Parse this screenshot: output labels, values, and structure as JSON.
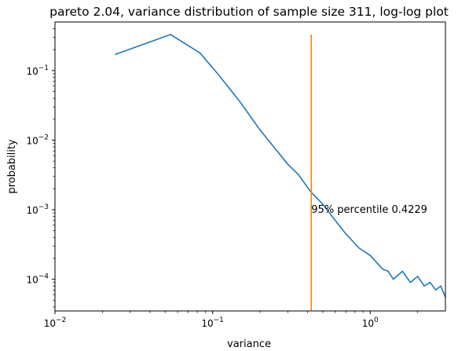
{
  "chart_data": {
    "type": "line",
    "title": "pareto 2.04, variance distribution of sample size 311, log-log plot",
    "xlabel": "variance",
    "ylabel": "probability",
    "xscale": "log",
    "yscale": "log",
    "xlim": [
      0.01,
      3.0
    ],
    "ylim": [
      3.5e-05,
      0.5
    ],
    "x_ticks": [
      {
        "value": 0.01,
        "base": "10",
        "exp": "−2"
      },
      {
        "value": 0.1,
        "base": "10",
        "exp": "−1"
      },
      {
        "value": 1,
        "base": "10",
        "exp": "0"
      }
    ],
    "y_ticks": [
      {
        "value": 0.0001,
        "base": "10",
        "exp": "−4"
      },
      {
        "value": 0.001,
        "base": "10",
        "exp": "−3"
      },
      {
        "value": 0.01,
        "base": "10",
        "exp": "−2"
      },
      {
        "value": 0.1,
        "base": "10",
        "exp": "−1"
      }
    ],
    "grid": false,
    "series": [
      {
        "color": "#1f77b4",
        "x": [
          0.024,
          0.054,
          0.083,
          0.11,
          0.15,
          0.2,
          0.25,
          0.3,
          0.35,
          0.42,
          0.5,
          0.6,
          0.7,
          0.85,
          1.0,
          1.2,
          1.3,
          1.4,
          1.6,
          1.8,
          2.0,
          2.2,
          2.4,
          2.6,
          2.8,
          3.0
        ],
        "y": [
          0.17,
          0.33,
          0.18,
          0.085,
          0.035,
          0.014,
          0.0075,
          0.0045,
          0.0032,
          0.0018,
          0.0012,
          0.0007,
          0.00045,
          0.00028,
          0.00022,
          0.00014,
          0.00013,
          0.0001,
          0.00013,
          9e-05,
          0.00011,
          8e-05,
          9e-05,
          7e-05,
          8e-05,
          5.5e-05
        ]
      }
    ],
    "vline": {
      "x": 0.4229,
      "y_top": 0.33,
      "color": "#ff7f0e"
    },
    "annotation": {
      "text": "95% percentile 0.4229",
      "x": 0.4229,
      "y": 0.001
    }
  }
}
